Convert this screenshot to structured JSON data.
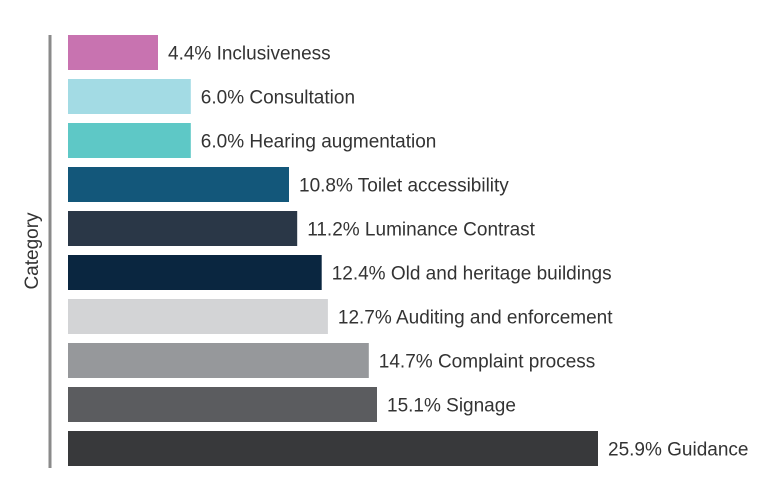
{
  "chart_data": {
    "type": "bar",
    "orientation": "horizontal",
    "ylabel": "Category",
    "xlabel": "",
    "unit": "%",
    "xlim": [
      0,
      25.9
    ],
    "categories": [
      "Inclusiveness",
      "Consultation",
      "Hearing augmentation",
      "Toilet accessibility",
      "Luminance Contrast",
      "Old and heritage buildings",
      "Auditing and enforcement",
      "Complaint process",
      "Signage",
      "Guidance"
    ],
    "values": [
      4.4,
      6.0,
      6.0,
      10.8,
      11.2,
      12.4,
      12.7,
      14.7,
      15.1,
      25.9
    ],
    "colors": [
      "#c873b0",
      "#a3dbe4",
      "#5ec8c6",
      "#13577a",
      "#2a3747",
      "#0a2640",
      "#d3d4d6",
      "#96989b",
      "#5b5c5f",
      "#38393b"
    ]
  }
}
